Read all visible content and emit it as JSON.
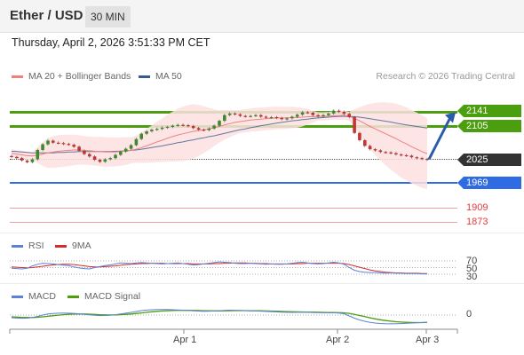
{
  "header": {
    "title": "Ether / USD",
    "timeframe": "30 MIN"
  },
  "timestamp": "Thursday, April 2, 2026 3:51:33 PM CET",
  "legend": {
    "ma20": "MA 20 + Bollinger Bands",
    "ma50": "MA 50",
    "credit": "Research © 2026 Trading Central",
    "rsi": "RSI",
    "rsi_ma": "9MA",
    "macd": "MACD",
    "macd_signal": "MACD Signal"
  },
  "colors": {
    "resistance": "#4b9e0e",
    "current": "#333333",
    "support_blue": "#2f6be3",
    "target_red": "#e63b3b",
    "ma20": "#f08080",
    "ma50": "#3a5b8e",
    "bollinger_fill": "#fde0e0",
    "candle_up": "#3e8a2a",
    "candle_down": "#c8322f",
    "arrow": "#2a5ba8",
    "rsi": "#5b82d6",
    "rsi_ma": "#d62b2b",
    "macd": "#5b82d6",
    "macd_signal": "#4b9e0e"
  },
  "price_labels": {
    "r1": "2141",
    "r2": "2105",
    "current": "2025",
    "s1": "1969",
    "t1": "1909",
    "t2": "1873"
  },
  "rsi_levels": [
    "70",
    "50",
    "30"
  ],
  "macd_zero": "0",
  "x_labels": [
    "Apr 1",
    "Apr 2",
    "Apr 3"
  ],
  "chart_data": {
    "type": "candlestick",
    "title": "Ether / USD",
    "interval": "30 MIN",
    "levels": {
      "resistance": [
        2141,
        2105
      ],
      "current": 2025,
      "support": [
        1969,
        1909,
        1873
      ]
    },
    "forecast_arrow": {
      "from": 2025,
      "to": 2141
    },
    "close": [
      2031,
      2028,
      2022,
      2018,
      2025,
      2048,
      2062,
      2071,
      2066,
      2065,
      2063,
      2061,
      2056,
      2046,
      2038,
      2032,
      2024,
      2019,
      2025,
      2028,
      2036,
      2044,
      2051,
      2060,
      2075,
      2088,
      2094,
      2098,
      2100,
      2103,
      2105,
      2108,
      2110,
      2109,
      2107,
      2102,
      2098,
      2097,
      2101,
      2108,
      2120,
      2134,
      2138,
      2136,
      2132,
      2131,
      2132,
      2134,
      2130,
      2128,
      2129,
      2127,
      2124,
      2126,
      2130,
      2135,
      2141,
      2140,
      2134,
      2131,
      2134,
      2138,
      2145,
      2142,
      2137,
      2129,
      2090,
      2072,
      2058,
      2050,
      2047,
      2043,
      2042,
      2040,
      2037,
      2035,
      2034,
      2030,
      2028,
      2026,
      2024
    ],
    "ma20": [
      2040,
      2038,
      2036,
      2034,
      2033,
      2035,
      2038,
      2041,
      2043,
      2045,
      2046,
      2047,
      2048,
      2048,
      2047,
      2046,
      2045,
      2044,
      2043,
      2043,
      2043,
      2044,
      2045,
      2047,
      2050,
      2054,
      2058,
      2063,
      2068,
      2072,
      2077,
      2081,
      2085,
      2088,
      2091,
      2094,
      2096,
      2098,
      2100,
      2103,
      2106,
      2110,
      2113,
      2116,
      2118,
      2120,
      2122,
      2123,
      2124,
      2125,
      2126,
      2127,
      2127,
      2127,
      2128,
      2128,
      2129,
      2130,
      2130,
      2131,
      2131,
      2132,
      2133,
      2133,
      2134,
      2131,
      2126,
      2120,
      2113,
      2106,
      2100,
      2094,
      2088,
      2082,
      2076,
      2069,
      2063,
      2056,
      2050,
      2044,
      2039
    ],
    "ma50": [
      2045,
      2044,
      2043,
      2042,
      2041,
      2041,
      2041,
      2041,
      2041,
      2042,
      2042,
      2043,
      2043,
      2044,
      2044,
      2044,
      2044,
      2044,
      2044,
      2044,
      2045,
      2045,
      2046,
      2047,
      2048,
      2050,
      2052,
      2054,
      2056,
      2058,
      2061,
      2063,
      2066,
      2068,
      2071,
      2073,
      2076,
      2078,
      2081,
      2083,
      2086,
      2089,
      2092,
      2095,
      2098,
      2100,
      2103,
      2105,
      2108,
      2110,
      2112,
      2114,
      2116,
      2118,
      2120,
      2121,
      2123,
      2124,
      2126,
      2127,
      2128,
      2129,
      2130,
      2131,
      2131,
      2131,
      2130,
      2129,
      2127,
      2125,
      2123,
      2121,
      2119,
      2117,
      2114,
      2112,
      2110,
      2108,
      2106,
      2104,
      2102
    ],
    "rsi": [
      48,
      47,
      46,
      48,
      55,
      60,
      63,
      62,
      61,
      59,
      57,
      56,
      52,
      49,
      47,
      46,
      50,
      53,
      56,
      58,
      61,
      64,
      63,
      62,
      64,
      65,
      64,
      63,
      62,
      61,
      62,
      63,
      64,
      62,
      60,
      58,
      59,
      61,
      63,
      65,
      67,
      66,
      65,
      63,
      62,
      62,
      63,
      62,
      61,
      60,
      61,
      60,
      60,
      61,
      63,
      65,
      66,
      64,
      62,
      61,
      62,
      64,
      66,
      64,
      60,
      50,
      42,
      38,
      36,
      35,
      35,
      34,
      33,
      34,
      33,
      33,
      32,
      32,
      32,
      31,
      31
    ],
    "rsi_ma": [
      52,
      51,
      50,
      49,
      50,
      52,
      54,
      56,
      58,
      59,
      60,
      60,
      59,
      57,
      55,
      53,
      52,
      52,
      53,
      54,
      55,
      57,
      59,
      60,
      61,
      62,
      62,
      63,
      63,
      63,
      62,
      62,
      62,
      62,
      62,
      61,
      61,
      61,
      61,
      62,
      62,
      63,
      63,
      64,
      64,
      64,
      63,
      63,
      62,
      62,
      61,
      61,
      61,
      61,
      61,
      62,
      62,
      63,
      63,
      63,
      63,
      63,
      63,
      63,
      62,
      59,
      55,
      51,
      47,
      43,
      40,
      38,
      36,
      35,
      34,
      34,
      33,
      33,
      33,
      32,
      32
    ],
    "macd": [
      -3.0,
      -3.4,
      -3.6,
      -3.5,
      -2.8,
      -1.5,
      0.0,
      1.2,
      1.8,
      2.1,
      2.2,
      2.1,
      1.9,
      1.4,
      0.8,
      0.2,
      -0.3,
      -0.6,
      -0.5,
      -0.2,
      0.4,
      1.2,
      2.1,
      3.0,
      4.0,
      5.0,
      5.6,
      6.0,
      6.2,
      6.3,
      6.2,
      6.0,
      5.8,
      5.5,
      5.2,
      4.8,
      4.5,
      4.3,
      4.4,
      4.6,
      4.9,
      5.3,
      5.5,
      5.4,
      5.2,
      5.0,
      4.8,
      4.6,
      4.4,
      4.1,
      3.9,
      3.6,
      3.3,
      3.1,
      3.0,
      3.1,
      3.2,
      3.1,
      2.9,
      2.7,
      2.6,
      2.5,
      2.6,
      2.3,
      1.5,
      -1.0,
      -3.5,
      -5.5,
      -7.0,
      -8.2,
      -9.0,
      -9.5,
      -9.8,
      -9.9,
      -9.8,
      -9.6,
      -9.3,
      -9.0,
      -8.7,
      -8.4,
      -8.1
    ],
    "macd_signal": [
      -2.0,
      -2.3,
      -2.6,
      -2.8,
      -2.8,
      -2.5,
      -2.0,
      -1.4,
      -0.7,
      -0.1,
      0.4,
      0.8,
      1.1,
      1.2,
      1.2,
      1.0,
      0.7,
      0.4,
      0.2,
      0.1,
      0.2,
      0.4,
      0.8,
      1.2,
      1.8,
      2.4,
      3.1,
      3.7,
      4.2,
      4.6,
      4.9,
      5.1,
      5.3,
      5.3,
      5.3,
      5.2,
      5.1,
      4.9,
      4.8,
      4.7,
      4.7,
      4.8,
      4.9,
      5.0,
      5.0,
      5.0,
      4.9,
      4.9,
      4.8,
      4.6,
      4.5,
      4.3,
      4.1,
      3.9,
      3.7,
      3.6,
      3.5,
      3.4,
      3.3,
      3.2,
      3.0,
      2.9,
      2.8,
      2.7,
      2.5,
      1.9,
      0.8,
      -0.5,
      -1.8,
      -3.1,
      -4.3,
      -5.3,
      -6.2,
      -6.9,
      -7.5,
      -7.9,
      -8.2,
      -8.4,
      -8.5,
      -8.5,
      -8.4
    ]
  }
}
